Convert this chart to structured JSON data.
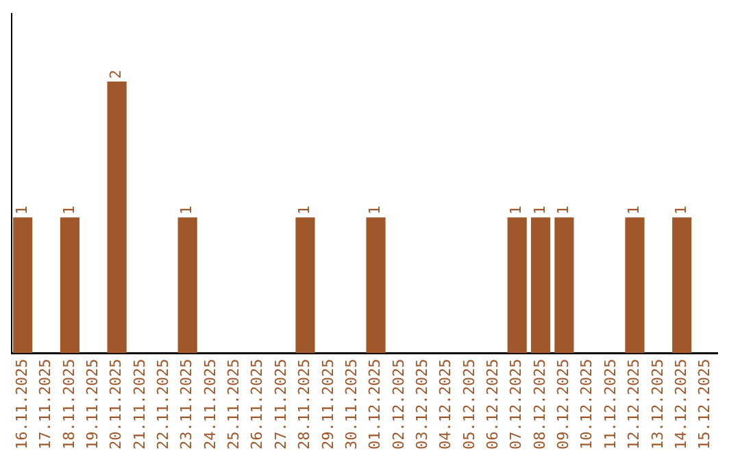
{
  "chart_data": {
    "type": "bar",
    "categories": [
      "16.11.2025",
      "17.11.2025",
      "18.11.2025",
      "19.11.2025",
      "20.11.2025",
      "21.11.2025",
      "22.11.2025",
      "23.11.2025",
      "24.11.2025",
      "25.11.2025",
      "26.11.2025",
      "27.11.2025",
      "28.11.2025",
      "29.11.2025",
      "30.11.2025",
      "01.12.2025",
      "02.12.2025",
      "03.12.2025",
      "04.12.2025",
      "05.12.2025",
      "06.12.2025",
      "07.12.2025",
      "08.12.2025",
      "09.12.2025",
      "10.12.2025",
      "11.12.2025",
      "12.12.2025",
      "13.12.2025",
      "14.12.2025",
      "15.12.2025"
    ],
    "values": [
      1,
      0,
      1,
      0,
      2,
      0,
      0,
      1,
      0,
      0,
      0,
      0,
      1,
      0,
      0,
      1,
      0,
      0,
      0,
      0,
      0,
      1,
      1,
      1,
      0,
      0,
      1,
      0,
      1,
      0
    ],
    "value_labels": [
      "1",
      null,
      "1",
      null,
      "2",
      null,
      null,
      "1",
      null,
      null,
      null,
      null,
      "1",
      null,
      null,
      "1",
      null,
      null,
      null,
      null,
      null,
      "1",
      "1",
      "1",
      null,
      null,
      "1",
      null,
      "1",
      null
    ],
    "color": "#a0572a",
    "grid": false,
    "legend": false,
    "tick_labels": "x"
  }
}
